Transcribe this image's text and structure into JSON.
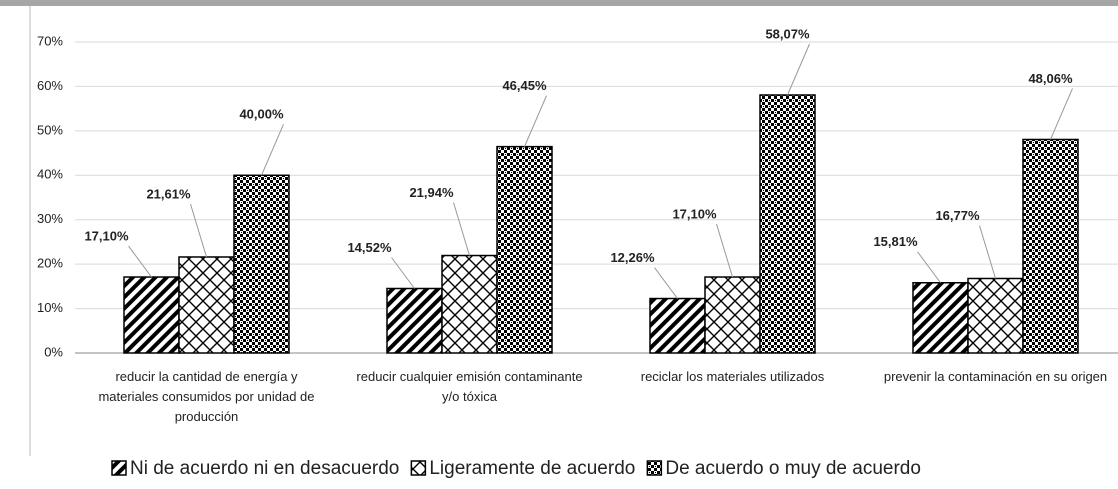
{
  "chart_data": {
    "type": "bar",
    "categories": [
      "reducir la cantidad de energía y materiales consumidos por unidad de producción",
      "reducir cualquier emisión contaminante y/o tóxica",
      "reciclar los materiales utilizados",
      "prevenir la contaminación en su origen"
    ],
    "series": [
      {
        "name": "Ni de acuerdo ni en desacuerdo",
        "color": "#000000",
        "pattern": "diagonal",
        "values": [
          17.1,
          14.52,
          12.26,
          15.81
        ],
        "value_labels": [
          "17,10%",
          "14,52%",
          "12,26%",
          "15,81%"
        ]
      },
      {
        "name": "Ligeramente de acuerdo",
        "color": "#000000",
        "pattern": "crosshatch",
        "values": [
          21.61,
          21.94,
          17.1,
          16.77
        ],
        "value_labels": [
          "21,61%",
          "21,94%",
          "17,10%",
          "16,77%"
        ]
      },
      {
        "name": "De acuerdo o muy de acuerdo",
        "color": "#000000",
        "pattern": "checker",
        "values": [
          40.0,
          46.45,
          58.07,
          48.06
        ],
        "value_labels": [
          "40,00%",
          "46,45%",
          "58,07%",
          "48,06%"
        ]
      }
    ],
    "ylim": [
      0,
      70
    ],
    "yticks": [
      {
        "value": 0,
        "label": "0%"
      },
      {
        "value": 10,
        "label": "10%"
      },
      {
        "value": 20,
        "label": "20%"
      },
      {
        "value": 30,
        "label": "30%"
      },
      {
        "value": 40,
        "label": "40%"
      },
      {
        "value": 50,
        "label": "50%"
      },
      {
        "value": 60,
        "label": "60%"
      },
      {
        "value": 70,
        "label": "70%"
      }
    ],
    "grid": true,
    "legend": "bottom"
  }
}
